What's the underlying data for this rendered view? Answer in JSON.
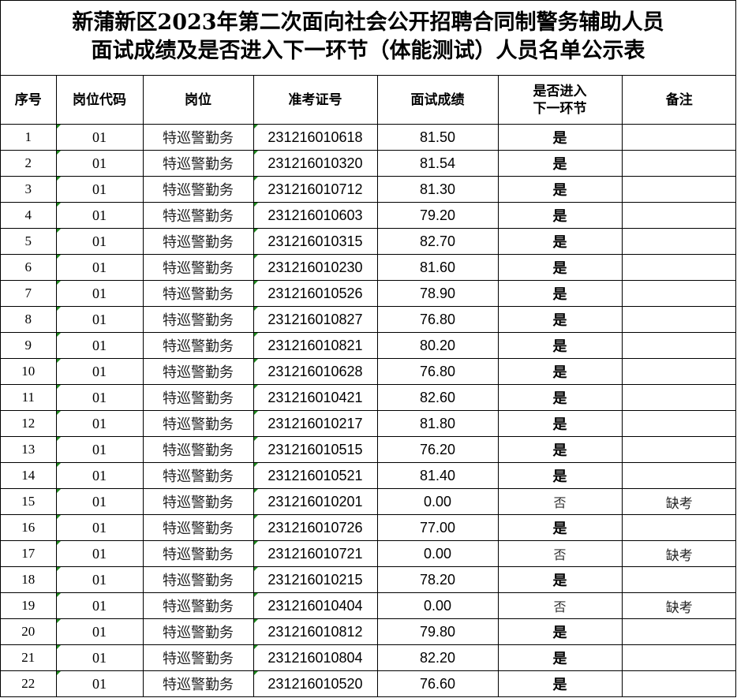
{
  "title": {
    "line1": "新蒲新区2023年第二次面向社会公开招聘合同制警务辅助人员",
    "line2": "面试成绩及是否进入下一环节（体能测试）人员名单公示表"
  },
  "headers": {
    "no": "序号",
    "code": "岗位代码",
    "post": "岗位",
    "id": "准考证号",
    "score": "面试成绩",
    "advance_line1": "是否进入",
    "advance_line2": "下一环节",
    "note": "备注"
  },
  "colors": {
    "error_indicator": "#1e8a1e",
    "border": "#000000"
  },
  "rows": [
    {
      "no": "1",
      "code": "01",
      "post": "特巡警勤务",
      "id": "231216010618",
      "score": "81.50",
      "advance": "是",
      "note": ""
    },
    {
      "no": "2",
      "code": "01",
      "post": "特巡警勤务",
      "id": "231216010320",
      "score": "81.54",
      "advance": "是",
      "note": ""
    },
    {
      "no": "3",
      "code": "01",
      "post": "特巡警勤务",
      "id": "231216010712",
      "score": "81.30",
      "advance": "是",
      "note": ""
    },
    {
      "no": "4",
      "code": "01",
      "post": "特巡警勤务",
      "id": "231216010603",
      "score": "79.20",
      "advance": "是",
      "note": ""
    },
    {
      "no": "5",
      "code": "01",
      "post": "特巡警勤务",
      "id": "231216010315",
      "score": "82.70",
      "advance": "是",
      "note": ""
    },
    {
      "no": "6",
      "code": "01",
      "post": "特巡警勤务",
      "id": "231216010230",
      "score": "81.60",
      "advance": "是",
      "note": ""
    },
    {
      "no": "7",
      "code": "01",
      "post": "特巡警勤务",
      "id": "231216010526",
      "score": "78.90",
      "advance": "是",
      "note": ""
    },
    {
      "no": "8",
      "code": "01",
      "post": "特巡警勤务",
      "id": "231216010827",
      "score": "76.80",
      "advance": "是",
      "note": ""
    },
    {
      "no": "9",
      "code": "01",
      "post": "特巡警勤务",
      "id": "231216010821",
      "score": "80.20",
      "advance": "是",
      "note": ""
    },
    {
      "no": "10",
      "code": "01",
      "post": "特巡警勤务",
      "id": "231216010628",
      "score": "76.80",
      "advance": "是",
      "note": ""
    },
    {
      "no": "11",
      "code": "01",
      "post": "特巡警勤务",
      "id": "231216010421",
      "score": "82.60",
      "advance": "是",
      "note": ""
    },
    {
      "no": "12",
      "code": "01",
      "post": "特巡警勤务",
      "id": "231216010217",
      "score": "81.80",
      "advance": "是",
      "note": ""
    },
    {
      "no": "13",
      "code": "01",
      "post": "特巡警勤务",
      "id": "231216010515",
      "score": "76.20",
      "advance": "是",
      "note": ""
    },
    {
      "no": "14",
      "code": "01",
      "post": "特巡警勤务",
      "id": "231216010521",
      "score": "81.40",
      "advance": "是",
      "note": ""
    },
    {
      "no": "15",
      "code": "01",
      "post": "特巡警勤务",
      "id": "231216010201",
      "score": "0.00",
      "advance": "否",
      "note": "缺考"
    },
    {
      "no": "16",
      "code": "01",
      "post": "特巡警勤务",
      "id": "231216010726",
      "score": "77.00",
      "advance": "是",
      "note": ""
    },
    {
      "no": "17",
      "code": "01",
      "post": "特巡警勤务",
      "id": "231216010721",
      "score": "0.00",
      "advance": "否",
      "note": "缺考"
    },
    {
      "no": "18",
      "code": "01",
      "post": "特巡警勤务",
      "id": "231216010215",
      "score": "78.20",
      "advance": "是",
      "note": ""
    },
    {
      "no": "19",
      "code": "01",
      "post": "特巡警勤务",
      "id": "231216010404",
      "score": "0.00",
      "advance": "否",
      "note": "缺考"
    },
    {
      "no": "20",
      "code": "01",
      "post": "特巡警勤务",
      "id": "231216010812",
      "score": "79.80",
      "advance": "是",
      "note": ""
    },
    {
      "no": "21",
      "code": "01",
      "post": "特巡警勤务",
      "id": "231216010804",
      "score": "82.20",
      "advance": "是",
      "note": ""
    },
    {
      "no": "22",
      "code": "01",
      "post": "特巡警勤务",
      "id": "231216010520",
      "score": "76.60",
      "advance": "是",
      "note": ""
    }
  ]
}
